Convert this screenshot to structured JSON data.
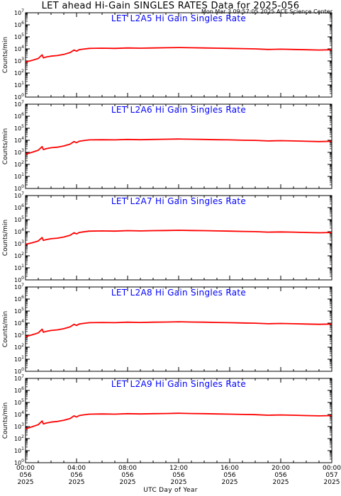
{
  "header": {
    "title": "LET ahead Hi-Gain SINGLES RATES Data for 2025-056",
    "timestamp": "Mon Mar  3 09:57:05 2025 ACE Science Center"
  },
  "chart_data": [
    {
      "type": "line",
      "title": "LET L2A5 Hi Gain Singles Rate",
      "ylabel": "Counts/min",
      "xlabel": "UTC Day of Year",
      "yscale": "log",
      "ylim": [
        1,
        10000000
      ],
      "xlim": [
        0,
        24
      ],
      "color": "#ff0000",
      "x": [
        0,
        0.5,
        1.0,
        1.3,
        1.4,
        1.6,
        2.0,
        2.5,
        3.0,
        3.5,
        3.8,
        4.0,
        4.2,
        4.5,
        5.0,
        6.0,
        7.0,
        8.0,
        9.0,
        10.0,
        11.0,
        12.0,
        13.0,
        14.0,
        15.0,
        16.0,
        17.0,
        18.0,
        19.0,
        20.0,
        21.0,
        22.0,
        23.0,
        24.0
      ],
      "y": [
        800,
        1100,
        1600,
        3200,
        1800,
        2100,
        2500,
        2800,
        3500,
        5000,
        8000,
        6500,
        8500,
        9500,
        11000,
        11500,
        11000,
        12000,
        11500,
        12000,
        12500,
        13000,
        12500,
        12000,
        11500,
        11000,
        10500,
        10000,
        9000,
        9500,
        9000,
        8500,
        8000,
        8500
      ]
    },
    {
      "type": "line",
      "title": "LET L2A6 Hi Gain Singles Rate",
      "ylabel": "Counts/min",
      "xlabel": "UTC Day of Year",
      "yscale": "log",
      "ylim": [
        1,
        10000000
      ],
      "xlim": [
        0,
        24
      ],
      "color": "#ff0000",
      "x": [
        0,
        0.5,
        1.0,
        1.3,
        1.4,
        1.6,
        2.0,
        2.5,
        3.0,
        3.5,
        3.8,
        4.0,
        4.2,
        4.5,
        5.0,
        6.0,
        7.0,
        8.0,
        9.0,
        10.0,
        11.0,
        12.0,
        13.0,
        14.0,
        15.0,
        16.0,
        17.0,
        18.0,
        19.0,
        20.0,
        21.0,
        22.0,
        23.0,
        24.0
      ],
      "y": [
        700,
        1000,
        1500,
        3000,
        1700,
        2000,
        2400,
        2700,
        3400,
        4800,
        7800,
        6300,
        8300,
        9300,
        10800,
        11200,
        10800,
        11800,
        11200,
        11800,
        12200,
        12800,
        12200,
        11800,
        11200,
        10800,
        10200,
        9800,
        8800,
        9300,
        8800,
        8300,
        7800,
        8300
      ]
    },
    {
      "type": "line",
      "title": "LET L2A7 Hi Gain Singles Rate",
      "ylabel": "Counts/min",
      "xlabel": "UTC Day of Year",
      "yscale": "log",
      "ylim": [
        1,
        10000000
      ],
      "xlim": [
        0,
        24
      ],
      "color": "#ff0000",
      "x": [
        0,
        0.5,
        1.0,
        1.3,
        1.4,
        1.6,
        2.0,
        2.5,
        3.0,
        3.5,
        3.8,
        4.0,
        4.2,
        4.5,
        5.0,
        6.0,
        7.0,
        8.0,
        9.0,
        10.0,
        11.0,
        12.0,
        13.0,
        14.0,
        15.0,
        16.0,
        17.0,
        18.0,
        19.0,
        20.0,
        21.0,
        22.0,
        23.0,
        24.0
      ],
      "y": [
        900,
        1200,
        1700,
        3300,
        1900,
        2200,
        2600,
        2900,
        3600,
        5100,
        8200,
        6600,
        8600,
        9600,
        11200,
        11600,
        11200,
        12200,
        11600,
        12200,
        12600,
        13200,
        12600,
        12200,
        11600,
        11200,
        10600,
        10200,
        9200,
        9600,
        9200,
        8600,
        8200,
        8600
      ]
    },
    {
      "type": "line",
      "title": "LET L2A8 Hi Gain Singles Rate",
      "ylabel": "Counts/min",
      "xlabel": "UTC Day of Year",
      "yscale": "log",
      "ylim": [
        1,
        10000000
      ],
      "xlim": [
        0,
        24
      ],
      "color": "#ff0000",
      "x": [
        0,
        0.5,
        1.0,
        1.3,
        1.4,
        1.6,
        2.0,
        2.5,
        3.0,
        3.5,
        3.8,
        4.0,
        4.2,
        4.5,
        5.0,
        6.0,
        7.0,
        8.0,
        9.0,
        10.0,
        11.0,
        12.0,
        13.0,
        14.0,
        15.0,
        16.0,
        17.0,
        18.0,
        19.0,
        20.0,
        21.0,
        22.0,
        23.0,
        24.0
      ],
      "y": [
        750,
        1050,
        1550,
        3100,
        1750,
        2050,
        2450,
        2750,
        3450,
        4900,
        7900,
        6400,
        8400,
        9400,
        10900,
        11300,
        10900,
        11900,
        11300,
        11900,
        12300,
        12900,
        12300,
        11900,
        11300,
        10900,
        10300,
        9900,
        8900,
        9400,
        8900,
        8400,
        7900,
        8400
      ]
    },
    {
      "type": "line",
      "title": "LET L2A9 Hi Gain Singles Rate",
      "ylabel": "Counts/min",
      "xlabel": "UTC Day of Year",
      "yscale": "log",
      "ylim": [
        1,
        10000000
      ],
      "xlim": [
        0,
        24
      ],
      "color": "#ff0000",
      "x": [
        0,
        0.5,
        1.0,
        1.3,
        1.4,
        1.6,
        2.0,
        2.5,
        3.0,
        3.5,
        3.8,
        4.0,
        4.2,
        4.5,
        5.0,
        6.0,
        7.0,
        8.0,
        9.0,
        10.0,
        11.0,
        12.0,
        13.0,
        14.0,
        15.0,
        16.0,
        17.0,
        18.0,
        19.0,
        20.0,
        21.0,
        22.0,
        23.0,
        24.0
      ],
      "y": [
        650,
        950,
        1450,
        2900,
        1650,
        1950,
        2350,
        2650,
        3350,
        4700,
        7700,
        6200,
        8200,
        9200,
        10700,
        11100,
        10700,
        11700,
        11100,
        11700,
        12100,
        12700,
        12100,
        11700,
        11100,
        10700,
        10100,
        9700,
        8700,
        9200,
        8700,
        8200,
        7700,
        8200
      ]
    }
  ],
  "axes": {
    "y_ticks": [
      {
        "base": "10",
        "exp": "0"
      },
      {
        "base": "10",
        "exp": "1"
      },
      {
        "base": "10",
        "exp": "2"
      },
      {
        "base": "10",
        "exp": "3"
      },
      {
        "base": "10",
        "exp": "4"
      },
      {
        "base": "10",
        "exp": "5"
      },
      {
        "base": "10",
        "exp": "6"
      },
      {
        "base": "10",
        "exp": "7"
      }
    ],
    "x_ticks": [
      {
        "time": "00:00",
        "doy": "056",
        "year": "2025"
      },
      {
        "time": "04:00",
        "doy": "056",
        "year": "2025"
      },
      {
        "time": "08:00",
        "doy": "056",
        "year": "2025"
      },
      {
        "time": "12:00",
        "doy": "056",
        "year": "2025"
      },
      {
        "time": "16:00",
        "doy": "056",
        "year": "2025"
      },
      {
        "time": "20:00",
        "doy": "056",
        "year": "2025"
      },
      {
        "time": "00:00",
        "doy": "057",
        "year": "2025"
      }
    ],
    "xlabel": "UTC Day of Year"
  },
  "colors": {
    "series": "#ff0000",
    "panel_title": "#0000ff",
    "axis": "#000000"
  }
}
